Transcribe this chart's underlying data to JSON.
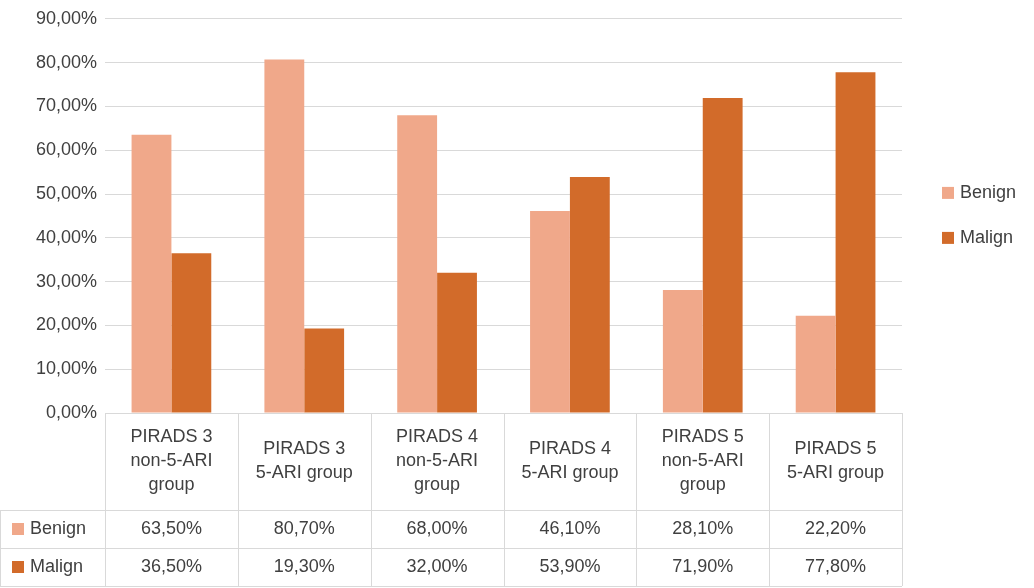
{
  "chart_data": {
    "type": "bar",
    "categories": [
      "PIRADS 3 non-5-ARI group",
      "PIRADS 3 5-ARI group",
      "PIRADS 4 non-5-ARI group",
      "PIRADS 4 5-ARI group",
      "PIRADS 5 non-5-ARI group",
      "PIRADS 5 5-ARI group"
    ],
    "series": [
      {
        "name": "Benign",
        "color": "#f0a88a",
        "values": [
          63.5,
          80.7,
          68.0,
          46.1,
          28.1,
          22.2
        ],
        "value_labels": [
          "63,50%",
          "80,70%",
          "68,00%",
          "46,10%",
          "28,10%",
          "22,20%"
        ]
      },
      {
        "name": "Malign",
        "color": "#d26b2a",
        "values": [
          36.5,
          19.3,
          32.0,
          53.9,
          71.9,
          77.8
        ],
        "value_labels": [
          "36,50%",
          "19,30%",
          "32,00%",
          "53,90%",
          "71,90%",
          "77,80%"
        ]
      }
    ],
    "ylim": [
      0,
      90
    ],
    "yticks": [
      {
        "value": 0,
        "label": "0,00%"
      },
      {
        "value": 10,
        "label": "10,00%"
      },
      {
        "value": 20,
        "label": "20,00%"
      },
      {
        "value": 30,
        "label": "30,00%"
      },
      {
        "value": 40,
        "label": "40,00%"
      },
      {
        "value": 50,
        "label": "50,00%"
      },
      {
        "value": 60,
        "label": "60,00%"
      },
      {
        "value": 70,
        "label": "70,00%"
      },
      {
        "value": 80,
        "label": "80,00%"
      },
      {
        "value": 90,
        "label": "90,00%"
      }
    ],
    "grid": "y",
    "legend": "right"
  }
}
